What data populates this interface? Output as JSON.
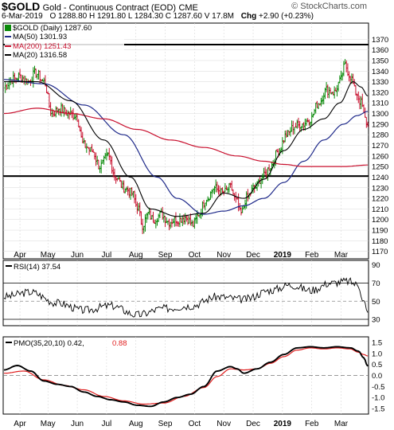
{
  "header": {
    "symbol": "$GOLD",
    "name": "Gold - Continuous Contract (EOD)",
    "exchange": "CME",
    "date": "6-Mar-2019",
    "ohlc_text": "O 1288.80  H 1291.80  L 1284.30  C 1287.60  V 17.8M",
    "chg_label": "Chg",
    "chg_value": "+2.90 (+0.23%)",
    "watermark": "© StockCharts.com"
  },
  "colors": {
    "up": "#0a8a0a",
    "down": "#c8102e",
    "ma50": "#1f2a8a",
    "ma200": "#c8102e",
    "ma20": "#000000",
    "pmo_signal": "#e02020",
    "grid": "#d8d8d8"
  },
  "legend": {
    "price_title": "$GOLD (Daily) 1287.60",
    "ma50": "MA(50) 1301.93",
    "ma200": "MA(200) 1251.43",
    "ma20": "MA(20) 1316.58"
  },
  "rsi_panel": {
    "title": "RSI(14) 37.54"
  },
  "pmo_panel": {
    "title_main": "PMO(35,20,10) 0.42,",
    "title_signal": "0.88"
  },
  "chart_data": [
    {
      "type": "line",
      "panel": "price",
      "title": "$GOLD (Daily) 1287.60",
      "x_tick_labels": [
        "Apr",
        "May",
        "Jun",
        "Jul",
        "Aug",
        "Sep",
        "Oct",
        "Nov",
        "Dec",
        "2019",
        "Feb",
        "Mar"
      ],
      "x_tick_index": [
        12,
        33,
        55,
        77,
        99,
        121,
        143,
        165,
        187,
        209,
        231,
        253
      ],
      "ylim": [
        1163,
        1377
      ],
      "yticks": [
        1170,
        1180,
        1190,
        1200,
        1210,
        1220,
        1230,
        1240,
        1250,
        1260,
        1270,
        1280,
        1290,
        1300,
        1310,
        1320,
        1330,
        1340,
        1350,
        1360,
        1370
      ],
      "horizontal_lines": [
        1365,
        1241
      ],
      "close_anchors": [
        [
          0,
          1325
        ],
        [
          6,
          1332
        ],
        [
          12,
          1335
        ],
        [
          18,
          1330
        ],
        [
          24,
          1338
        ],
        [
          30,
          1330
        ],
        [
          36,
          1300
        ],
        [
          42,
          1305
        ],
        [
          48,
          1300
        ],
        [
          54,
          1298
        ],
        [
          60,
          1270
        ],
        [
          66,
          1265
        ],
        [
          72,
          1250
        ],
        [
          78,
          1260
        ],
        [
          84,
          1240
        ],
        [
          90,
          1230
        ],
        [
          96,
          1225
        ],
        [
          100,
          1212
        ],
        [
          104,
          1195
        ],
        [
          108,
          1205
        ],
        [
          112,
          1200
        ],
        [
          118,
          1205
        ],
        [
          124,
          1198
        ],
        [
          130,
          1200
        ],
        [
          136,
          1202
        ],
        [
          142,
          1195
        ],
        [
          146,
          1205
        ],
        [
          152,
          1220
        ],
        [
          158,
          1230
        ],
        [
          164,
          1225
        ],
        [
          170,
          1230
        ],
        [
          174,
          1218
        ],
        [
          178,
          1205
        ],
        [
          182,
          1220
        ],
        [
          188,
          1230
        ],
        [
          194,
          1240
        ],
        [
          200,
          1250
        ],
        [
          206,
          1265
        ],
        [
          212,
          1280
        ],
        [
          218,
          1288
        ],
        [
          224,
          1290
        ],
        [
          230,
          1295
        ],
        [
          236,
          1310
        ],
        [
          242,
          1322
        ],
        [
          248,
          1320
        ],
        [
          252,
          1330
        ],
        [
          256,
          1345
        ],
        [
          260,
          1335
        ],
        [
          264,
          1320
        ],
        [
          268,
          1310
        ],
        [
          271,
          1295
        ],
        [
          273,
          1287.6
        ]
      ],
      "range_estimate": 5,
      "series": [
        {
          "name": "MA(50) 1301.93",
          "last": 1301.93,
          "anchors": [
            [
              0,
              1332
            ],
            [
              30,
              1328
            ],
            [
              60,
              1308
            ],
            [
              90,
              1280
            ],
            [
              115,
              1240
            ],
            [
              130,
              1220
            ],
            [
              150,
              1205
            ],
            [
              165,
              1208
            ],
            [
              180,
              1213
            ],
            [
              195,
              1220
            ],
            [
              210,
              1235
            ],
            [
              225,
              1255
            ],
            [
              240,
              1275
            ],
            [
              255,
              1290
            ],
            [
              265,
              1298
            ],
            [
              273,
              1301.93
            ]
          ]
        },
        {
          "name": "MA(200) 1251.43",
          "last": 1251.43,
          "anchors": [
            [
              0,
              1300
            ],
            [
              25,
              1305
            ],
            [
              50,
              1300
            ],
            [
              75,
              1295
            ],
            [
              100,
              1285
            ],
            [
              125,
              1275
            ],
            [
              150,
              1268
            ],
            [
              175,
              1260
            ],
            [
              195,
              1255
            ],
            [
              210,
              1252
            ],
            [
              225,
              1250
            ],
            [
              240,
              1250
            ],
            [
              255,
              1250
            ],
            [
              273,
              1251.43
            ]
          ]
        },
        {
          "name": "MA(20) 1316.58",
          "last": 1316.58,
          "anchors": [
            [
              0,
              1330
            ],
            [
              25,
              1330
            ],
            [
              50,
              1312
            ],
            [
              75,
              1275
            ],
            [
              95,
              1240
            ],
            [
              110,
              1210
            ],
            [
              130,
              1203
            ],
            [
              150,
              1206
            ],
            [
              165,
              1225
            ],
            [
              180,
              1220
            ],
            [
              195,
              1238
            ],
            [
              210,
              1265
            ],
            [
              225,
              1285
            ],
            [
              240,
              1295
            ],
            [
              252,
              1310
            ],
            [
              262,
              1330
            ],
            [
              268,
              1325
            ],
            [
              273,
              1316.58
            ]
          ]
        }
      ]
    },
    {
      "type": "line",
      "panel": "rsi",
      "series": [
        {
          "name": "RSI(14) 37.54",
          "last": 37.54,
          "anchors": [
            [
              0,
              55
            ],
            [
              20,
              60
            ],
            [
              40,
              48
            ],
            [
              60,
              40
            ],
            [
              80,
              45
            ],
            [
              100,
              35
            ],
            [
              120,
              42
            ],
            [
              140,
              45
            ],
            [
              160,
              55
            ],
            [
              180,
              52
            ],
            [
              200,
              62
            ],
            [
              215,
              68
            ],
            [
              230,
              62
            ],
            [
              245,
              70
            ],
            [
              258,
              72
            ],
            [
              266,
              68
            ],
            [
              270,
              50
            ],
            [
              273,
              37.54
            ]
          ]
        }
      ],
      "ylim": [
        23,
        95
      ],
      "yticks": [
        30,
        50,
        70,
        90
      ],
      "guide_lines": [
        30,
        50,
        70
      ]
    },
    {
      "type": "line",
      "panel": "pmo",
      "series": [
        {
          "name": "PMO(35,20,10) 0.42",
          "last": 0.42,
          "anchors": [
            [
              0,
              0.25
            ],
            [
              10,
              0.45
            ],
            [
              20,
              0.2
            ],
            [
              30,
              -0.25
            ],
            [
              40,
              -0.4
            ],
            [
              50,
              -0.5
            ],
            [
              60,
              -0.75
            ],
            [
              70,
              -0.95
            ],
            [
              80,
              -1.1
            ],
            [
              90,
              -1.2
            ],
            [
              100,
              -1.35
            ],
            [
              110,
              -1.4
            ],
            [
              120,
              -1.2
            ],
            [
              130,
              -1.0
            ],
            [
              140,
              -0.85
            ],
            [
              150,
              -0.5
            ],
            [
              160,
              0.2
            ],
            [
              170,
              0.4
            ],
            [
              175,
              0.3
            ],
            [
              180,
              0.1
            ],
            [
              190,
              0.3
            ],
            [
              200,
              0.6
            ],
            [
              210,
              0.95
            ],
            [
              220,
              1.25
            ],
            [
              230,
              1.3
            ],
            [
              240,
              1.25
            ],
            [
              250,
              1.3
            ],
            [
              260,
              1.25
            ],
            [
              266,
              1.1
            ],
            [
              270,
              0.8
            ],
            [
              273,
              0.42
            ]
          ]
        },
        {
          "name": "0.88",
          "last": 0.88,
          "anchors": [
            [
              0,
              0.1
            ],
            [
              15,
              0.2
            ],
            [
              30,
              -0.2
            ],
            [
              45,
              -0.45
            ],
            [
              60,
              -0.65
            ],
            [
              75,
              -0.95
            ],
            [
              90,
              -1.15
            ],
            [
              105,
              -1.3
            ],
            [
              120,
              -1.25
            ],
            [
              135,
              -0.95
            ],
            [
              150,
              -0.55
            ],
            [
              160,
              -0.05
            ],
            [
              170,
              0.3
            ],
            [
              180,
              0.25
            ],
            [
              190,
              0.3
            ],
            [
              200,
              0.55
            ],
            [
              210,
              0.85
            ],
            [
              220,
              1.15
            ],
            [
              230,
              1.25
            ],
            [
              240,
              1.2
            ],
            [
              250,
              1.25
            ],
            [
              260,
              1.2
            ],
            [
              266,
              1.05
            ],
            [
              270,
              0.95
            ],
            [
              273,
              0.88
            ]
          ]
        }
      ],
      "ylim": [
        -1.75,
        1.75
      ],
      "yticks": [
        -1.5,
        -1.0,
        -0.5,
        0.0,
        0.5,
        1.0,
        1.5
      ],
      "zero_line": 0
    }
  ]
}
